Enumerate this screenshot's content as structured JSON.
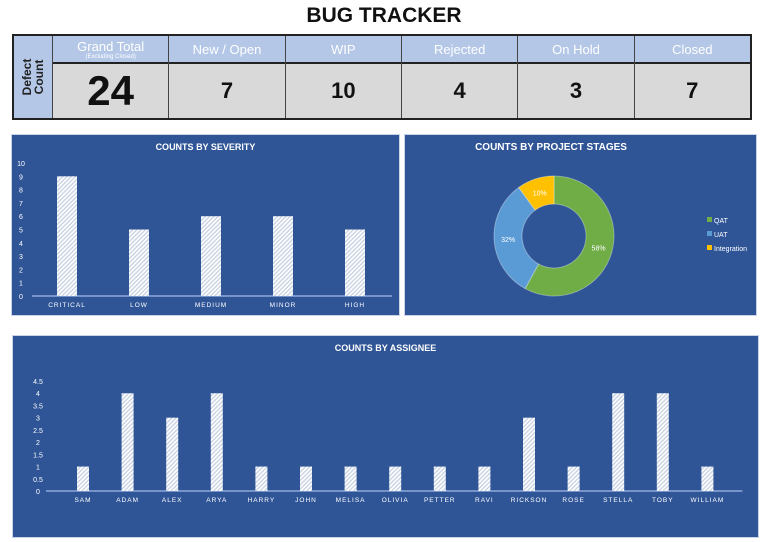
{
  "title": "BUG TRACKER",
  "summary": {
    "row_label": "Defect Count",
    "columns": [
      {
        "label": "Grand Total",
        "sublabel": "(Excluding Closed)",
        "value": "24"
      },
      {
        "label": "New / Open",
        "value": "7"
      },
      {
        "label": "WIP",
        "value": "10"
      },
      {
        "label": "Rejected",
        "value": "4"
      },
      {
        "label": "On Hold",
        "value": "3"
      },
      {
        "label": "Closed",
        "value": "7"
      }
    ]
  },
  "colors": {
    "panel": "#2f5597",
    "header": "#b4c7e7",
    "qat": "#70ad47",
    "uat": "#5b9bd5",
    "integration": "#ffc000"
  },
  "chart_data": [
    {
      "type": "bar",
      "title": "COUNTS BY SEVERITY",
      "categories": [
        "CRITICAL",
        "LOW",
        "MEDIUM",
        "MINOR",
        "HIGH"
      ],
      "values": [
        9,
        5,
        6,
        6,
        5
      ],
      "ylim": [
        0,
        10
      ],
      "yticks": [
        "0",
        "1",
        "2",
        "3",
        "4",
        "5",
        "6",
        "7",
        "8",
        "9",
        "10"
      ],
      "grid": false
    },
    {
      "type": "pie",
      "subtype": "donut",
      "title": "COUNTS BY PROJECT STAGES",
      "categories": [
        "QAT",
        "UAT",
        "Integration"
      ],
      "values": [
        58,
        32,
        10
      ],
      "labels": [
        "58%",
        "32%",
        "10%"
      ],
      "legend": "right"
    },
    {
      "type": "bar",
      "title": "COUNTS BY ASSIGNEE",
      "categories": [
        "SAM",
        "ADAM",
        "ALEX",
        "ARYA",
        "HARRY",
        "JOHN",
        "MELISA",
        "OLIVIA",
        "PETTER",
        "RAVI",
        "RICKSON",
        "ROSE",
        "STELLA",
        "TOBY",
        "WILLIAM"
      ],
      "values": [
        1,
        4,
        3,
        4,
        1,
        1,
        1,
        1,
        1,
        1,
        3,
        1,
        4,
        4,
        1
      ],
      "ylim": [
        0,
        4.5
      ],
      "yticks": [
        "0",
        "0.5",
        "1",
        "1.5",
        "2",
        "2.5",
        "3",
        "3.5",
        "4",
        "4.5"
      ],
      "grid": false
    }
  ]
}
